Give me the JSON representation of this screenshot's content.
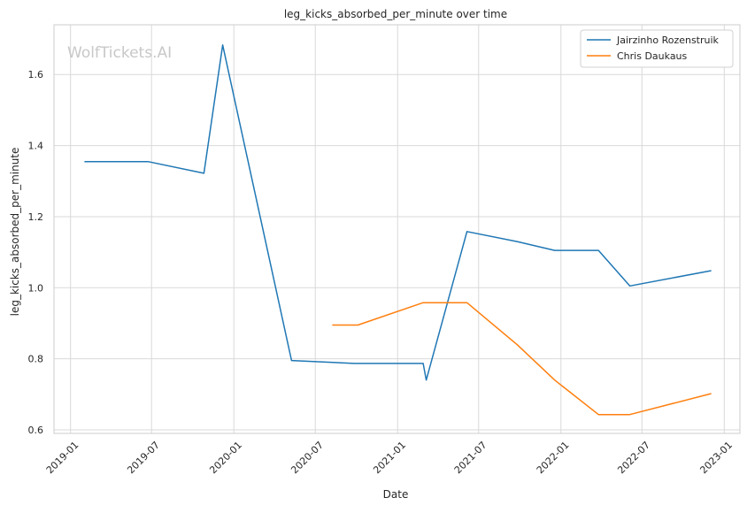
{
  "chart_data": {
    "type": "line",
    "title": "leg_kicks_absorbed_per_minute over time",
    "xlabel": "Date",
    "ylabel": "leg_kicks_absorbed_per_minute",
    "watermark": "WolfTickets.AI",
    "grid": true,
    "legend_position": "top-right",
    "xlim": [
      "2018-11-25",
      "2023-02-05"
    ],
    "ylim": [
      0.59,
      1.74
    ],
    "x_ticks": [
      "2019-01",
      "2019-07",
      "2020-01",
      "2020-07",
      "2021-01",
      "2021-07",
      "2022-01",
      "2022-07",
      "2023-01"
    ],
    "y_ticks": [
      0.6,
      0.8,
      1.0,
      1.2,
      1.4,
      1.6
    ],
    "y_tick_labels": [
      "0.6",
      "0.8",
      "1.0",
      "1.2",
      "1.4",
      "1.6"
    ],
    "series": [
      {
        "name": "Jairzinho Rozenstruik",
        "color": "#1f77b4",
        "points": [
          {
            "x": "2019-02-01",
            "y": 1.355
          },
          {
            "x": "2019-06-23",
            "y": 1.355
          },
          {
            "x": "2019-10-26",
            "y": 1.322
          },
          {
            "x": "2019-12-07",
            "y": 1.683
          },
          {
            "x": "2020-05-09",
            "y": 0.795
          },
          {
            "x": "2020-09-26",
            "y": 0.787
          },
          {
            "x": "2021-02-27",
            "y": 0.787
          },
          {
            "x": "2021-03-06",
            "y": 0.74
          },
          {
            "x": "2021-06-05",
            "y": 1.158
          },
          {
            "x": "2021-09-25",
            "y": 1.13
          },
          {
            "x": "2021-12-18",
            "y": 1.105
          },
          {
            "x": "2022-03-26",
            "y": 1.105
          },
          {
            "x": "2022-06-04",
            "y": 1.005
          },
          {
            "x": "2022-12-03",
            "y": 1.048
          }
        ]
      },
      {
        "name": "Chris Daukaus",
        "color": "#ff7f0e",
        "points": [
          {
            "x": "2020-08-08",
            "y": 0.895
          },
          {
            "x": "2020-10-04",
            "y": 0.895
          },
          {
            "x": "2021-02-27",
            "y": 0.958
          },
          {
            "x": "2021-06-05",
            "y": 0.958
          },
          {
            "x": "2021-09-25",
            "y": 0.84
          },
          {
            "x": "2021-12-18",
            "y": 0.74
          },
          {
            "x": "2022-03-26",
            "y": 0.643
          },
          {
            "x": "2022-06-04",
            "y": 0.643
          },
          {
            "x": "2022-12-03",
            "y": 0.702
          }
        ]
      }
    ]
  }
}
